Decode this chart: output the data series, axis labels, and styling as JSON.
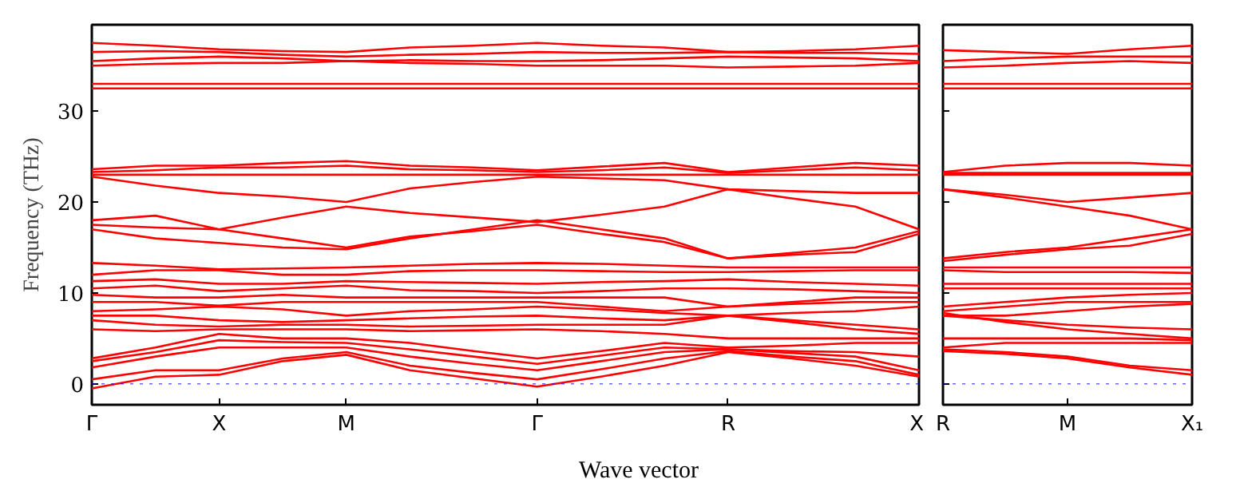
{
  "chart_data": [
    {
      "type": "line",
      "ylabel": "Frequency (THz)",
      "xlabel": "Wave vector",
      "categories": [
        "Γ",
        null,
        "X",
        null,
        "M",
        null,
        null,
        "Γ",
        null,
        null,
        "R",
        null,
        null,
        "X"
      ],
      "ylim": [
        -2.3,
        39.5
      ],
      "yticks": [
        0,
        10,
        20,
        30
      ],
      "grid": false,
      "marker": "none",
      "line_style": "solid",
      "ref_lines": [
        {
          "axis": "y",
          "value": 0,
          "color": "#0000ff",
          "line_style": "dotted"
        }
      ],
      "series": [
        {
          "color": "#ff0000",
          "values": [
            37.5,
            37.2,
            36.8,
            36.6,
            36.5,
            37.0,
            37.2,
            37.5,
            37.2,
            37.0,
            36.5,
            36.6,
            36.8,
            37.2
          ]
        },
        {
          "color": "#ff0000",
          "values": [
            36.5,
            36.6,
            36.5,
            36.2,
            36.0,
            36.2,
            36.3,
            36.5,
            36.4,
            36.4,
            36.5,
            36.4,
            36.4,
            36.3
          ]
        },
        {
          "color": "#ff0000",
          "values": [
            35.5,
            35.8,
            36.0,
            35.8,
            35.5,
            35.6,
            35.5,
            35.5,
            35.6,
            35.8,
            36.0,
            35.9,
            35.8,
            35.5
          ]
        },
        {
          "color": "#ff0000",
          "values": [
            35.0,
            35.2,
            35.3,
            35.3,
            35.5,
            35.3,
            35.2,
            35.0,
            35.0,
            35.0,
            34.8,
            34.9,
            35.0,
            35.3
          ]
        },
        {
          "color": "#ff0000",
          "values": [
            33.0,
            33.0,
            33.0,
            33.0,
            33.0,
            33.0,
            33.0,
            33.0,
            33.0,
            33.0,
            33.0,
            33.0,
            33.0,
            33.0
          ]
        },
        {
          "color": "#ff0000",
          "values": [
            32.5,
            32.5,
            32.5,
            32.5,
            32.5,
            32.5,
            32.5,
            32.5,
            32.5,
            32.5,
            32.5,
            32.5,
            32.5,
            32.5
          ]
        },
        {
          "color": "#ff0000",
          "values": [
            23.6,
            24.0,
            24.0,
            24.3,
            24.5,
            24.0,
            23.8,
            23.5,
            23.9,
            24.3,
            23.3,
            23.8,
            24.3,
            24.0
          ]
        },
        {
          "color": "#ff0000",
          "values": [
            23.3,
            23.5,
            23.8,
            23.8,
            24.0,
            23.6,
            23.5,
            23.3,
            23.5,
            23.8,
            23.2,
            23.5,
            23.8,
            23.5
          ]
        },
        {
          "color": "#ff0000",
          "values": [
            23.0,
            23.0,
            23.0,
            23.0,
            23.0,
            23.0,
            23.0,
            23.0,
            23.0,
            23.0,
            23.0,
            23.0,
            23.0,
            23.0
          ]
        },
        {
          "color": "#ff0000",
          "values": [
            22.8,
            21.8,
            21.0,
            20.6,
            20.0,
            21.5,
            22.2,
            22.8,
            22.6,
            22.4,
            21.4,
            21.2,
            21.0,
            21.0
          ]
        },
        {
          "color": "#ff0000",
          "values": [
            18.0,
            18.5,
            17.0,
            18.3,
            19.5,
            18.8,
            18.3,
            17.8,
            18.6,
            19.5,
            21.4,
            20.4,
            19.5,
            17.0
          ]
        },
        {
          "color": "#ff0000",
          "values": [
            17.5,
            17.2,
            17.0,
            16.0,
            15.0,
            16.2,
            16.8,
            17.5,
            16.5,
            15.6,
            13.8,
            14.4,
            15.0,
            16.8
          ]
        },
        {
          "color": "#ff0000",
          "values": [
            17.0,
            16.0,
            15.5,
            15.0,
            14.8,
            16.0,
            17.0,
            18.0,
            17.0,
            16.0,
            13.8,
            14.2,
            14.5,
            16.5
          ]
        },
        {
          "color": "#ff0000",
          "values": [
            13.3,
            13.0,
            12.6,
            12.7,
            12.8,
            13.0,
            13.2,
            13.3,
            13.2,
            13.0,
            12.8,
            12.8,
            12.8,
            12.8
          ]
        },
        {
          "color": "#ff0000",
          "values": [
            12.0,
            12.5,
            12.5,
            12.0,
            12.0,
            12.4,
            12.5,
            12.5,
            12.4,
            12.3,
            12.3,
            12.4,
            12.5,
            12.5
          ]
        },
        {
          "color": "#ff0000",
          "values": [
            11.3,
            11.5,
            11.0,
            11.0,
            11.3,
            11.2,
            11.1,
            11.0,
            11.2,
            11.3,
            11.5,
            11.2,
            11.0,
            10.8
          ]
        },
        {
          "color": "#ff0000",
          "values": [
            10.5,
            10.8,
            10.2,
            10.5,
            10.8,
            10.3,
            10.2,
            10.0,
            10.2,
            10.5,
            10.5,
            10.4,
            10.2,
            10.0
          ]
        },
        {
          "color": "#ff0000",
          "values": [
            9.8,
            9.5,
            9.5,
            9.8,
            9.5,
            9.5,
            9.5,
            9.5,
            9.5,
            9.5,
            8.5,
            9.0,
            9.5,
            9.5
          ]
        },
        {
          "color": "#ff0000",
          "values": [
            9.0,
            9.0,
            8.6,
            9.0,
            9.0,
            9.0,
            9.0,
            9.0,
            8.5,
            8.0,
            8.5,
            8.8,
            9.0,
            9.0
          ]
        },
        {
          "color": "#ff0000",
          "values": [
            8.0,
            8.2,
            8.5,
            8.2,
            7.5,
            8.0,
            8.2,
            8.5,
            8.2,
            7.8,
            7.5,
            7.8,
            8.0,
            8.5
          ]
        },
        {
          "color": "#ff0000",
          "values": [
            7.5,
            7.5,
            7.0,
            6.8,
            7.0,
            7.2,
            7.4,
            7.5,
            7.2,
            7.0,
            7.5,
            7.0,
            6.5,
            6.0
          ]
        },
        {
          "color": "#ff0000",
          "values": [
            7.0,
            6.5,
            6.3,
            6.5,
            6.5,
            6.3,
            6.4,
            6.5,
            6.5,
            6.5,
            7.5,
            6.8,
            6.0,
            5.5
          ]
        },
        {
          "color": "#ff0000",
          "values": [
            6.0,
            5.8,
            6.0,
            6.0,
            6.0,
            5.8,
            5.9,
            6.0,
            5.8,
            5.5,
            5.0,
            5.0,
            5.0,
            5.0
          ]
        },
        {
          "color": "#ff0000",
          "values": [
            2.8,
            4.0,
            5.5,
            5.0,
            5.0,
            4.5,
            3.6,
            2.8,
            3.6,
            4.5,
            4.0,
            4.2,
            4.5,
            4.5
          ]
        },
        {
          "color": "#ff0000",
          "values": [
            2.5,
            3.5,
            4.8,
            4.6,
            4.5,
            3.8,
            3.0,
            2.2,
            3.1,
            4.0,
            3.8,
            3.6,
            3.5,
            3.0
          ]
        },
        {
          "color": "#ff0000",
          "values": [
            1.8,
            3.0,
            4.0,
            4.0,
            4.0,
            3.0,
            2.2,
            1.5,
            2.5,
            3.5,
            3.8,
            3.4,
            3.0,
            1.5
          ]
        },
        {
          "color": "#ff0000",
          "values": [
            0.5,
            1.5,
            1.5,
            2.8,
            3.5,
            2.0,
            1.2,
            0.5,
            1.6,
            2.8,
            3.6,
            3.0,
            2.5,
            1.0
          ]
        },
        {
          "color": "#ff0000",
          "values": [
            -0.5,
            0.8,
            1.0,
            2.5,
            3.2,
            1.5,
            0.6,
            -0.3,
            0.8,
            2.0,
            3.5,
            2.8,
            2.0,
            0.8
          ]
        }
      ]
    },
    {
      "type": "line",
      "categories": [
        "R",
        null,
        "M",
        null,
        "X₁"
      ],
      "ylim": [
        -2.3,
        39.5
      ],
      "yticks": [
        0,
        10,
        20,
        30
      ],
      "tick_labels": "x",
      "grid": false,
      "marker": "none",
      "line_style": "solid",
      "ref_lines": [
        {
          "axis": "y",
          "value": 0,
          "color": "#0000ff",
          "line_style": "dotted"
        }
      ],
      "series": [
        {
          "color": "#ff0000",
          "values": [
            36.7,
            36.5,
            36.3,
            36.8,
            37.2
          ]
        },
        {
          "color": "#ff0000",
          "values": [
            35.5,
            35.8,
            36.0,
            36.0,
            36.0
          ]
        },
        {
          "color": "#ff0000",
          "values": [
            34.8,
            35.0,
            35.3,
            35.5,
            35.3
          ]
        },
        {
          "color": "#ff0000",
          "values": [
            33.0,
            33.0,
            33.0,
            33.0,
            33.0
          ]
        },
        {
          "color": "#ff0000",
          "values": [
            32.5,
            32.5,
            32.5,
            32.5,
            32.5
          ]
        },
        {
          "color": "#ff0000",
          "values": [
            23.3,
            24.0,
            24.3,
            24.3,
            24.0
          ]
        },
        {
          "color": "#ff0000",
          "values": [
            23.2,
            23.2,
            23.2,
            23.2,
            23.2
          ]
        },
        {
          "color": "#ff0000",
          "values": [
            23.0,
            23.0,
            23.0,
            23.0,
            23.0
          ]
        },
        {
          "color": "#ff0000",
          "values": [
            21.4,
            20.8,
            20.0,
            20.5,
            21.0
          ]
        },
        {
          "color": "#ff0000",
          "values": [
            21.4,
            20.5,
            19.5,
            18.5,
            17.0
          ]
        },
        {
          "color": "#ff0000",
          "values": [
            13.8,
            14.5,
            15.0,
            16.0,
            17.0
          ]
        },
        {
          "color": "#ff0000",
          "values": [
            13.5,
            14.2,
            14.8,
            15.2,
            16.5
          ]
        },
        {
          "color": "#ff0000",
          "values": [
            12.8,
            12.8,
            12.8,
            12.8,
            12.8
          ]
        },
        {
          "color": "#ff0000",
          "values": [
            12.5,
            12.3,
            12.3,
            12.3,
            12.2
          ]
        },
        {
          "color": "#ff0000",
          "values": [
            11.0,
            11.0,
            11.0,
            11.0,
            11.0
          ]
        },
        {
          "color": "#ff0000",
          "values": [
            10.5,
            10.5,
            10.5,
            10.5,
            10.5
          ]
        },
        {
          "color": "#ff0000",
          "values": [
            8.5,
            9.0,
            9.5,
            9.8,
            10.0
          ]
        },
        {
          "color": "#ff0000",
          "values": [
            8.0,
            8.5,
            9.0,
            9.0,
            9.0
          ]
        },
        {
          "color": "#ff0000",
          "values": [
            7.5,
            7.5,
            8.0,
            8.5,
            8.8
          ]
        },
        {
          "color": "#ff0000",
          "values": [
            7.5,
            7.0,
            6.5,
            6.2,
            6.0
          ]
        },
        {
          "color": "#ff0000",
          "values": [
            7.8,
            6.8,
            6.0,
            5.5,
            5.0
          ]
        },
        {
          "color": "#ff0000",
          "values": [
            5.0,
            5.0,
            5.0,
            5.0,
            4.8
          ]
        },
        {
          "color": "#ff0000",
          "values": [
            4.0,
            4.5,
            4.5,
            4.5,
            4.5
          ]
        },
        {
          "color": "#ff0000",
          "values": [
            3.8,
            3.5,
            3.0,
            2.0,
            1.5
          ]
        },
        {
          "color": "#ff0000",
          "values": [
            3.6,
            3.3,
            2.8,
            1.8,
            1.0
          ]
        }
      ]
    }
  ]
}
